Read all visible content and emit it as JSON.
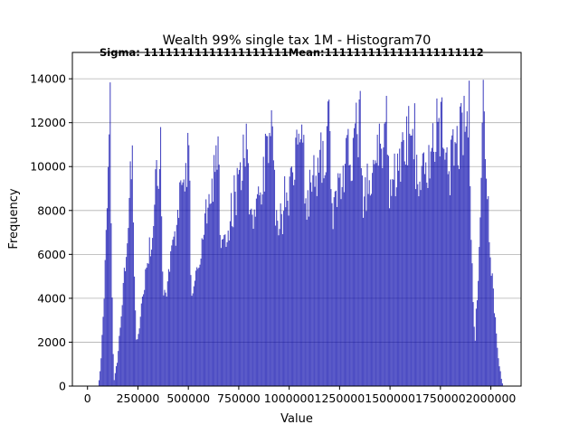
{
  "chart_data": {
    "type": "bar",
    "title": "Wealth 99% single tax 1M - Histogram70",
    "overlay_text": "Sigma: 11111111111111111111Mean:1111111111111111111112",
    "xlabel": "Value",
    "ylabel": "Frequency",
    "xlim": [
      -75000,
      2150000
    ],
    "ylim": [
      0,
      15200
    ],
    "xticks": [
      0,
      250000,
      500000,
      750000,
      1000000,
      1250000,
      1500000,
      1750000,
      2000000
    ],
    "xtick_labels": [
      "0",
      "250000",
      "500000",
      "750000",
      "1000000",
      "1250000",
      "1500000",
      "1750000",
      "2000000"
    ],
    "yticks": [
      0,
      2000,
      4000,
      6000,
      8000,
      10000,
      12000,
      14000
    ],
    "ytick_labels": [
      "0",
      "2000",
      "4000",
      "6000",
      "8000",
      "10000",
      "12000",
      "14000"
    ],
    "grid": "horizontal",
    "bar_color": "#0000aa",
    "bar_alpha": 0.7,
    "series": [
      {
        "lobes": [
          {
            "start": 50000,
            "peak_x": 110000,
            "peak": 14500,
            "end": 130000
          },
          {
            "start": 120000,
            "peak_x": 220000,
            "peak": 12500,
            "end": 250000
          },
          {
            "start": 180000,
            "peak_x": 360000,
            "peak": 12800,
            "end": 390000
          },
          {
            "start": 250000,
            "peak_x": 500000,
            "peak": 12800,
            "end": 530000
          },
          {
            "start": 320000,
            "peak_x": 650000,
            "peak": 12200,
            "end": 680000
          },
          {
            "start": 400000,
            "peak_x": 790000,
            "peak": 13000,
            "end": 830000
          },
          {
            "start": 480000,
            "peak_x": 920000,
            "peak": 13500,
            "end": 960000
          },
          {
            "start": 560000,
            "peak_x": 1070000,
            "peak": 13300,
            "end": 1100000
          },
          {
            "start": 640000,
            "peak_x": 1200000,
            "peak": 13600,
            "end": 1240000
          },
          {
            "start": 720000,
            "peak_x": 1350000,
            "peak": 13800,
            "end": 1380000
          },
          {
            "start": 800000,
            "peak_x": 1490000,
            "peak": 13900,
            "end": 1520000
          },
          {
            "start": 880000,
            "peak_x": 1620000,
            "peak": 13900,
            "end": 1660000
          },
          {
            "start": 960000,
            "peak_x": 1760000,
            "peak": 14000,
            "end": 1800000
          },
          {
            "start": 1050000,
            "peak_x": 1890000,
            "peak": 14000,
            "end": 1930000
          },
          {
            "start": 1900000,
            "peak_x": 1960000,
            "peak": 15000,
            "end": 2060000
          }
        ]
      }
    ]
  }
}
